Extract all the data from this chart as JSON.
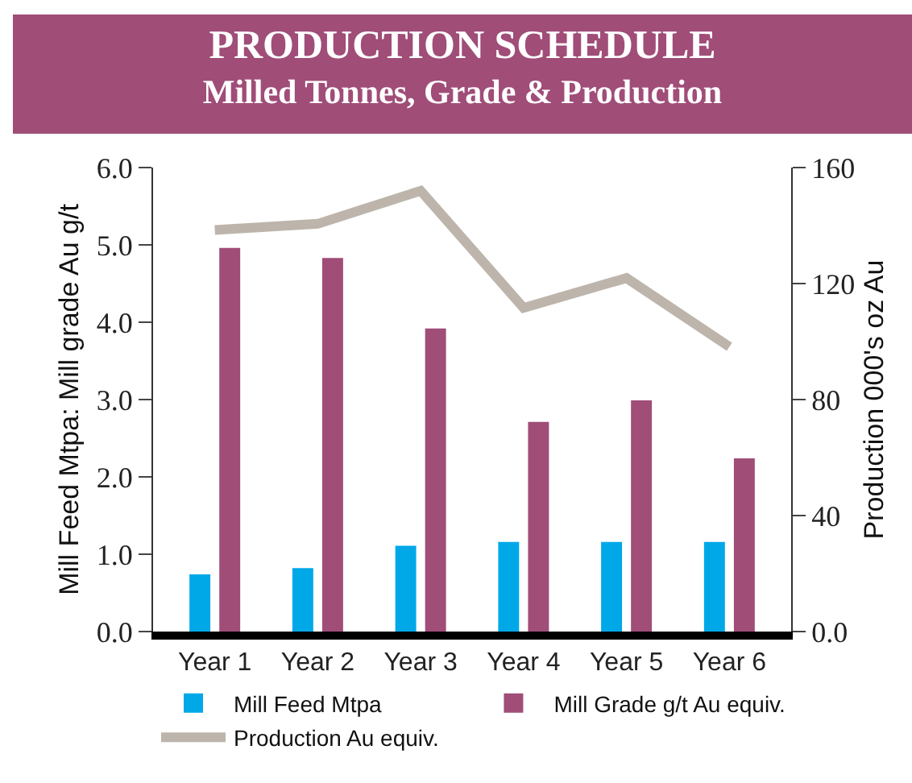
{
  "chart_data": {
    "type": "bar",
    "title": "PRODUCTION SCHEDULE",
    "subtitle": "Milled Tonnes, Grade & Production",
    "ylabel": "Mill Feed Mtpa: Mill grade Au g/t",
    "y2label": "Production 000's oz Au",
    "categories": [
      "Year 1",
      "Year 2",
      "Year 3",
      "Year 4",
      "Year 5",
      "Year 6"
    ],
    "series": [
      {
        "name": "Mill Feed Mtpa",
        "color": "#00a8e8",
        "values": [
          0.74,
          0.82,
          1.11,
          1.16,
          1.16,
          1.16
        ]
      },
      {
        "name": "Mill Grade g/t Au equiv.",
        "color": "#a04d78",
        "values": [
          4.96,
          4.83,
          3.92,
          2.71,
          2.99,
          2.24
        ]
      },
      {
        "name": "Production Au equiv.",
        "type": "line",
        "axis": "y2",
        "color": "#bdb5ab",
        "marker": "none",
        "values": [
          138.5,
          140.6,
          152,
          111.6,
          121.9,
          98.2
        ]
      }
    ],
    "ylim": [
      0,
      6
    ],
    "yticks": [
      {
        "value": 0,
        "label": "0.0"
      },
      {
        "value": 1,
        "label": "1.0"
      },
      {
        "value": 2,
        "label": "2.0"
      },
      {
        "value": 3,
        "label": "3.0"
      },
      {
        "value": 4,
        "label": "4.0"
      },
      {
        "value": 5,
        "label": "5.0"
      },
      {
        "value": 6,
        "label": "6.0"
      }
    ],
    "y2lim": [
      0,
      160
    ],
    "y2ticks": [
      {
        "value": 0,
        "label": "0.0"
      },
      40,
      80,
      120,
      160
    ],
    "grid": false,
    "legend": "bottom"
  }
}
